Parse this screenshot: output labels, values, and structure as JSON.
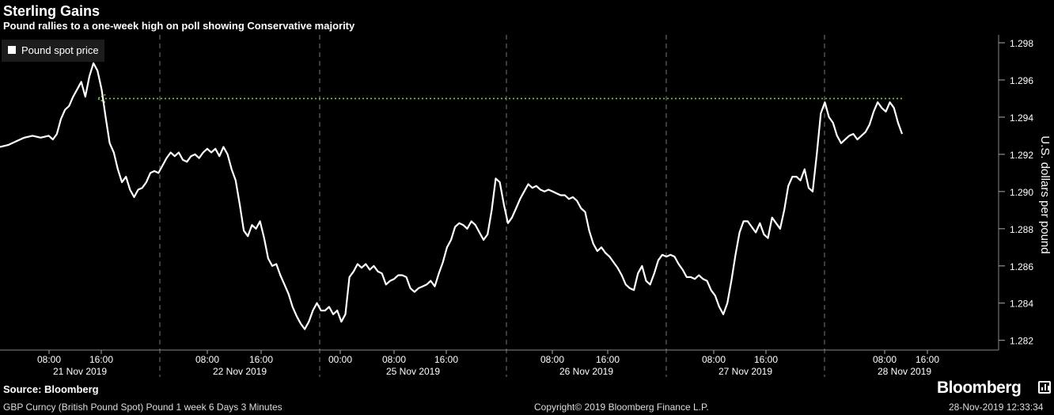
{
  "header": {
    "title": "Sterling Gains",
    "subtitle": "Pound rallies to a one-week high on poll showing Conservative majority"
  },
  "legend": {
    "label": "Pound spot price"
  },
  "footer": {
    "source": "Source: Bloomberg",
    "brand": "Bloomberg",
    "ticker_info": "GBP Curncy (British Pound Spot) Pound 1 week 6 Days 3 Minutes",
    "copyright": "Copyright© 2019 Bloomberg Finance L.P.",
    "timestamp": "28-Nov-2019 12:33:34"
  },
  "colors": {
    "background": "#000000",
    "line": "#ffffff",
    "annotation_arrow": "#7cc63a",
    "grid": "#777777"
  },
  "chart_data": {
    "type": "line",
    "ylabel": "U.S. dollars per pound",
    "ylim": [
      1.2815,
      1.2985
    ],
    "y_ticks": [
      "1.298",
      "1.296",
      "1.294",
      "1.292",
      "1.290",
      "1.288",
      "1.286",
      "1.284",
      "1.282"
    ],
    "grid": "vertical dashed at day boundaries",
    "legend_position": "top-left",
    "day_labels": [
      "21 Nov 2019",
      "22 Nov 2019",
      "25 Nov 2019",
      "26 Nov 2019",
      "27 Nov 2019",
      "28 Nov 2019"
    ],
    "time_ticks": [
      [
        "08:00",
        "16:00"
      ],
      [
        "08:00",
        "16:00"
      ],
      [
        "00:00",
        "08:00",
        "16:00"
      ],
      [
        "08:00",
        "16:00"
      ],
      [
        "08:00",
        "16:00"
      ],
      [
        "08:00",
        "16:00"
      ]
    ],
    "series": [
      {
        "name": "Pound spot price",
        "points": [
          [
            0,
            1.2924
          ],
          [
            2,
            1.2925
          ],
          [
            4,
            1.2927
          ],
          [
            6,
            1.2929
          ],
          [
            8,
            1.293
          ],
          [
            10,
            1.2929
          ],
          [
            12,
            1.293
          ],
          [
            13,
            1.2928
          ],
          [
            14,
            1.2931
          ],
          [
            15,
            1.2939
          ],
          [
            16,
            1.2944
          ],
          [
            17,
            1.2946
          ],
          [
            18,
            1.2951
          ],
          [
            19,
            1.2955
          ],
          [
            20,
            1.2959
          ],
          [
            21,
            1.2951
          ],
          [
            22,
            1.2962
          ],
          [
            23,
            1.2969
          ],
          [
            24,
            1.2965
          ],
          [
            25,
            1.2955
          ],
          [
            26,
            1.294
          ],
          [
            27,
            1.2926
          ],
          [
            28,
            1.2921
          ],
          [
            29,
            1.2912
          ],
          [
            30,
            1.2905
          ],
          [
            31,
            1.2908
          ],
          [
            32,
            1.2901
          ],
          [
            33,
            1.2897
          ],
          [
            34,
            1.2901
          ],
          [
            35,
            1.2902
          ],
          [
            36,
            1.2905
          ],
          [
            37,
            1.291
          ],
          [
            38,
            1.2911
          ],
          [
            39,
            1.291
          ],
          [
            40,
            1.2914
          ],
          [
            41,
            1.2918
          ],
          [
            42,
            1.2921
          ],
          [
            43,
            1.2919
          ],
          [
            44,
            1.2921
          ],
          [
            45,
            1.2917
          ],
          [
            46,
            1.2916
          ],
          [
            47,
            1.2919
          ],
          [
            48,
            1.292
          ],
          [
            49,
            1.2918
          ],
          [
            50,
            1.2921
          ],
          [
            51,
            1.2923
          ],
          [
            52,
            1.2921
          ],
          [
            53,
            1.2923
          ],
          [
            54,
            1.2919
          ],
          [
            55,
            1.2924
          ],
          [
            56,
            1.292
          ],
          [
            57,
            1.2912
          ],
          [
            58,
            1.2906
          ],
          [
            59,
            1.2893
          ],
          [
            60,
            1.2879
          ],
          [
            61,
            1.2876
          ],
          [
            62,
            1.2882
          ],
          [
            63,
            1.288
          ],
          [
            64,
            1.2884
          ],
          [
            65,
            1.2875
          ],
          [
            66,
            1.2864
          ],
          [
            67,
            1.286
          ],
          [
            68,
            1.2861
          ],
          [
            69,
            1.2855
          ],
          [
            70,
            1.285
          ],
          [
            71,
            1.2845
          ],
          [
            72,
            1.2838
          ],
          [
            73,
            1.2833
          ],
          [
            74,
            1.2829
          ],
          [
            75,
            1.2826
          ],
          [
            76,
            1.283
          ],
          [
            77,
            1.2836
          ],
          [
            78,
            1.284
          ],
          [
            79,
            1.2836
          ],
          [
            80,
            1.2836
          ],
          [
            81,
            1.2838
          ],
          [
            82,
            1.2834
          ],
          [
            83,
            1.2836
          ],
          [
            84,
            1.283
          ],
          [
            85,
            1.2834
          ],
          [
            86,
            1.2854
          ],
          [
            87,
            1.2857
          ],
          [
            88,
            1.2861
          ],
          [
            89,
            1.2859
          ],
          [
            90,
            1.2861
          ],
          [
            91,
            1.2858
          ],
          [
            92,
            1.286
          ],
          [
            93,
            1.2857
          ],
          [
            94,
            1.2856
          ],
          [
            95,
            1.285
          ],
          [
            96,
            1.2852
          ],
          [
            97,
            1.2853
          ],
          [
            98,
            1.2855
          ],
          [
            99,
            1.2855
          ],
          [
            100,
            1.2854
          ],
          [
            101,
            1.2848
          ],
          [
            102,
            1.2846
          ],
          [
            103,
            1.2848
          ],
          [
            104,
            1.2849
          ],
          [
            105,
            1.285
          ],
          [
            106,
            1.2852
          ],
          [
            107,
            1.2849
          ],
          [
            108,
            1.2856
          ],
          [
            109,
            1.2862
          ],
          [
            110,
            1.287
          ],
          [
            111,
            1.2874
          ],
          [
            112,
            1.2881
          ],
          [
            113,
            1.2883
          ],
          [
            114,
            1.2882
          ],
          [
            115,
            1.288
          ],
          [
            116,
            1.2884
          ],
          [
            117,
            1.2882
          ],
          [
            118,
            1.2878
          ],
          [
            119,
            1.2874
          ],
          [
            120,
            1.2877
          ],
          [
            121,
            1.289
          ],
          [
            122,
            1.2907
          ],
          [
            123,
            1.2905
          ],
          [
            124,
            1.2893
          ],
          [
            125,
            1.2883
          ],
          [
            126,
            1.2886
          ],
          [
            127,
            1.2891
          ],
          [
            128,
            1.2896
          ],
          [
            129,
            1.29
          ],
          [
            130,
            1.2904
          ],
          [
            131,
            1.2902
          ],
          [
            132,
            1.2903
          ],
          [
            133,
            1.2901
          ],
          [
            134,
            1.29
          ],
          [
            135,
            1.2901
          ],
          [
            136,
            1.29
          ],
          [
            137,
            1.2899
          ],
          [
            138,
            1.2898
          ],
          [
            139,
            1.2898
          ],
          [
            140,
            1.2896
          ],
          [
            141,
            1.2897
          ],
          [
            142,
            1.2895
          ],
          [
            143,
            1.2891
          ],
          [
            144,
            1.2889
          ],
          [
            145,
            1.2879
          ],
          [
            146,
            1.2872
          ],
          [
            147,
            1.2868
          ],
          [
            148,
            1.287
          ],
          [
            149,
            1.2867
          ],
          [
            150,
            1.2865
          ],
          [
            151,
            1.2862
          ],
          [
            152,
            1.2859
          ],
          [
            153,
            1.2855
          ],
          [
            154,
            1.285
          ],
          [
            155,
            1.2848
          ],
          [
            156,
            1.2847
          ],
          [
            157,
            1.2856
          ],
          [
            158,
            1.286
          ],
          [
            159,
            1.2852
          ],
          [
            160,
            1.285
          ],
          [
            161,
            1.2856
          ],
          [
            162,
            1.2863
          ],
          [
            163,
            1.2866
          ],
          [
            164,
            1.2865
          ],
          [
            165,
            1.2866
          ],
          [
            166,
            1.2865
          ],
          [
            167,
            1.2861
          ],
          [
            168,
            1.2858
          ],
          [
            169,
            1.2854
          ],
          [
            170,
            1.2854
          ],
          [
            171,
            1.2853
          ],
          [
            172,
            1.2855
          ],
          [
            173,
            1.2853
          ],
          [
            174,
            1.2852
          ],
          [
            175,
            1.2847
          ],
          [
            176,
            1.2844
          ],
          [
            177,
            1.2838
          ],
          [
            178,
            1.2834
          ],
          [
            179,
            1.284
          ],
          [
            180,
            1.2852
          ],
          [
            181,
            1.2866
          ],
          [
            182,
            1.2878
          ],
          [
            183,
            1.2884
          ],
          [
            184,
            1.2884
          ],
          [
            185,
            1.2881
          ],
          [
            186,
            1.2878
          ],
          [
            187,
            1.2883
          ],
          [
            188,
            1.2877
          ],
          [
            189,
            1.2875
          ],
          [
            190,
            1.2886
          ],
          [
            191,
            1.2883
          ],
          [
            192,
            1.288
          ],
          [
            193,
            1.289
          ],
          [
            194,
            1.2903
          ],
          [
            195,
            1.2908
          ],
          [
            196,
            1.2908
          ],
          [
            197,
            1.2906
          ],
          [
            198,
            1.2912
          ],
          [
            199,
            1.2902
          ],
          [
            200,
            1.29
          ],
          [
            201,
            1.292
          ],
          [
            202,
            1.2942
          ],
          [
            203,
            1.2948
          ],
          [
            204,
            1.294
          ],
          [
            205,
            1.2937
          ],
          [
            206,
            1.293
          ],
          [
            207,
            1.2926
          ],
          [
            208,
            1.2928
          ],
          [
            209,
            1.293
          ],
          [
            210,
            1.2931
          ],
          [
            211,
            1.2928
          ],
          [
            212,
            1.293
          ],
          [
            213,
            1.2932
          ],
          [
            214,
            1.2936
          ],
          [
            215,
            1.2943
          ],
          [
            216,
            1.2948
          ],
          [
            217,
            1.2945
          ],
          [
            218,
            1.2943
          ],
          [
            219,
            1.2948
          ],
          [
            220,
            1.2945
          ],
          [
            221,
            1.2937
          ],
          [
            222,
            1.2931
          ]
        ]
      }
    ],
    "annotation": {
      "type": "arrow",
      "direction": "left",
      "y": 1.295,
      "from_x": 222,
      "to_x": 24
    }
  }
}
